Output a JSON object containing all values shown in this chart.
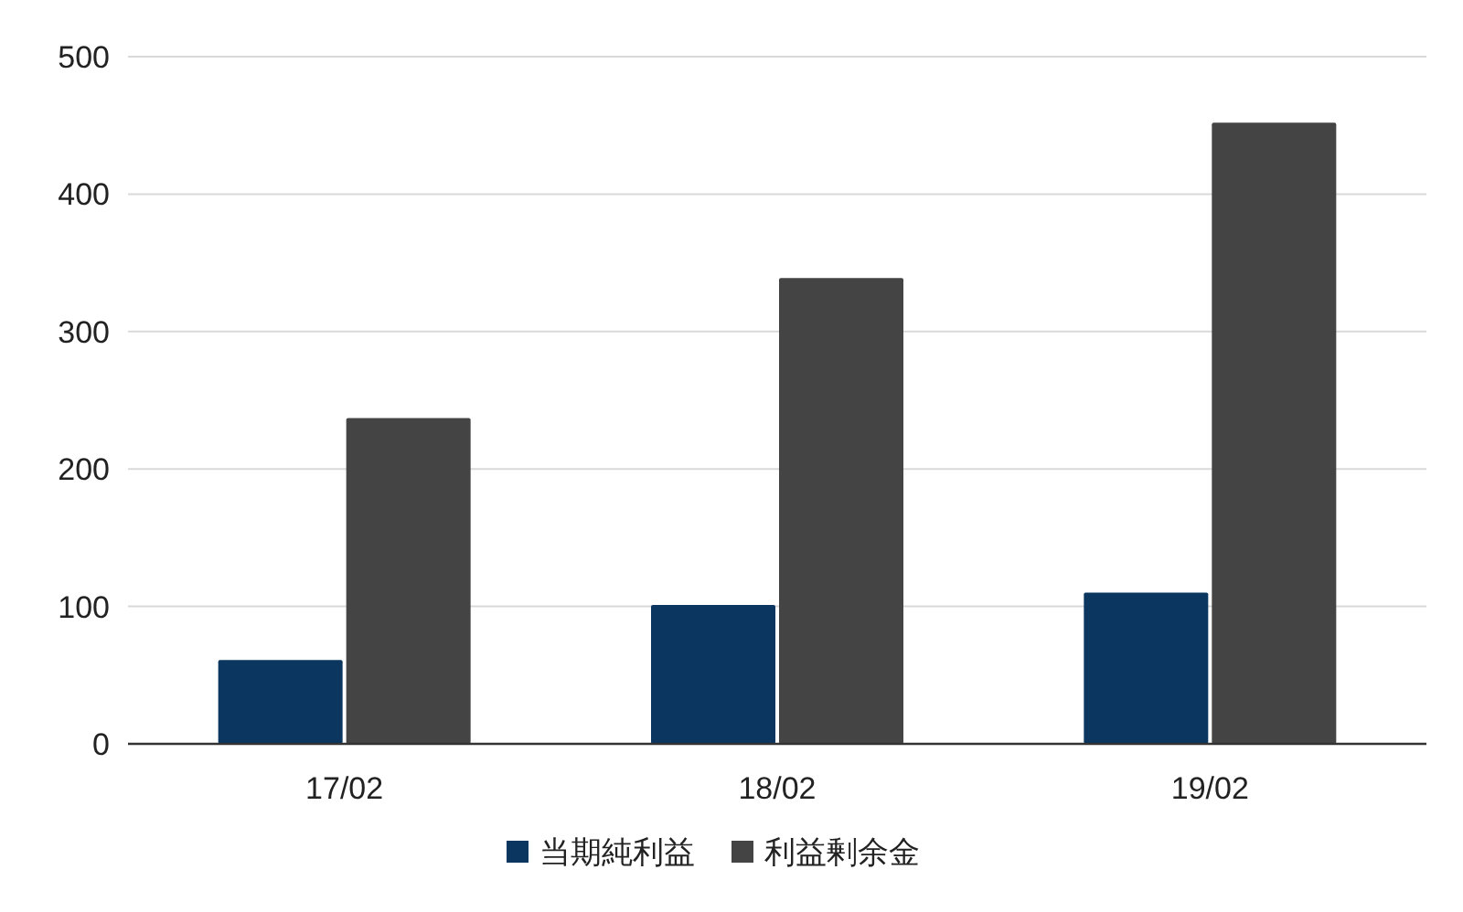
{
  "chart_data": {
    "type": "bar",
    "categories": [
      "17/02",
      "18/02",
      "19/02"
    ],
    "series": [
      {
        "name": "当期純利益",
        "color": "#0b3660",
        "values": [
          61,
          101,
          110
        ]
      },
      {
        "name": "利益剰余金",
        "color": "#444444",
        "values": [
          237,
          339,
          452
        ]
      }
    ],
    "ylim": [
      0,
      500
    ],
    "yticks": [
      0,
      100,
      200,
      300,
      400,
      500
    ],
    "grid": "y",
    "legend": "bottom"
  }
}
